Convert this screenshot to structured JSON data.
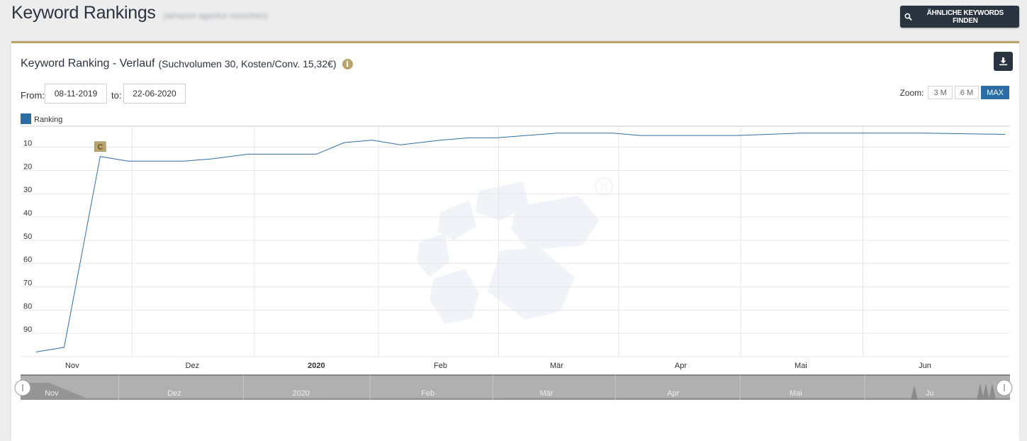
{
  "header": {
    "title": "Keyword Rankings",
    "subtitle": "(amazon agentur münchen)",
    "similar_button_label": "ÄHNLICHE KEYWORDS FINDEN"
  },
  "panel": {
    "title": "Keyword Ranking - Verlauf",
    "meta": "(Suchvolumen 30, Kosten/Conv. 15,32€)",
    "info_icon": "info-circle-icon",
    "download_icon": "download-icon"
  },
  "range": {
    "from_label": "From:",
    "from_value": "08-11-2019",
    "to_label": "to:",
    "to_value": "22-06-2020"
  },
  "zoom": {
    "label": "Zoom:",
    "options": [
      "3 M",
      "6 M",
      "MAX"
    ],
    "active": "MAX"
  },
  "colors": {
    "series": "#2d6da5",
    "accent": "#b8a46a",
    "dark_button": "#2a3340"
  },
  "chart_data": {
    "type": "line",
    "legend": [
      {
        "name": "Ranking",
        "color": "#2d6da5"
      }
    ],
    "y_axis": {
      "reversed": true,
      "range": [
        1,
        100
      ],
      "ticks": [
        10,
        20,
        30,
        40,
        50,
        60,
        70,
        80,
        90
      ]
    },
    "x_axis": {
      "range": [
        "2019-10-23",
        "2020-06-21"
      ],
      "ticks": [
        {
          "label": "Nov",
          "date": "2019-11-01",
          "bold": false
        },
        {
          "label": "Dez",
          "date": "2019-12-01",
          "bold": false
        },
        {
          "label": "2020",
          "date": "2020-01-01",
          "bold": true
        },
        {
          "label": "Feb",
          "date": "2020-02-01",
          "bold": false
        },
        {
          "label": "Mär",
          "date": "2020-03-01",
          "bold": false
        },
        {
          "label": "Apr",
          "date": "2020-04-01",
          "bold": false
        },
        {
          "label": "Mai",
          "date": "2020-05-01",
          "bold": false
        },
        {
          "label": "Jun",
          "date": "2020-06-01",
          "bold": false
        }
      ]
    },
    "series": [
      {
        "name": "Ranking",
        "points": [
          [
            "2019-10-23",
            98
          ],
          [
            "2019-10-30",
            96
          ],
          [
            "2019-11-08",
            14
          ],
          [
            "2019-11-15",
            16
          ],
          [
            "2019-11-29",
            16
          ],
          [
            "2019-12-06",
            15
          ],
          [
            "2019-12-15",
            13
          ],
          [
            "2020-01-01",
            13
          ],
          [
            "2020-01-08",
            8
          ],
          [
            "2020-01-15",
            7
          ],
          [
            "2020-01-22",
            9
          ],
          [
            "2020-02-01",
            7
          ],
          [
            "2020-02-08",
            6
          ],
          [
            "2020-02-15",
            6
          ],
          [
            "2020-03-01",
            4
          ],
          [
            "2020-03-15",
            4
          ],
          [
            "2020-03-22",
            5
          ],
          [
            "2020-04-15",
            5
          ],
          [
            "2020-05-01",
            4
          ],
          [
            "2020-06-01",
            4
          ],
          [
            "2020-06-21",
            4.5
          ]
        ]
      }
    ],
    "flags": [
      {
        "date": "2019-11-08",
        "label": "C"
      }
    ],
    "navigator": {
      "labels": [
        "Nov",
        "Dez",
        "2020",
        "Feb",
        "Mär",
        "Apr",
        "Mai",
        "Ju"
      ]
    }
  }
}
